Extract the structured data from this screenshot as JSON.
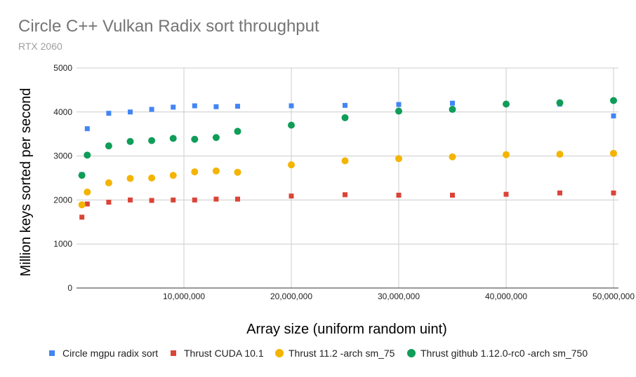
{
  "chart_data": {
    "type": "scatter",
    "title": "Circle C++ Vulkan Radix sort throughput",
    "subtitle": "RTX 2060",
    "xlabel": "Array size (uniform random uint)",
    "ylabel": "Million keys sorted per second",
    "xlim": [
      0,
      50000000
    ],
    "ylim": [
      0,
      5000
    ],
    "x_ticks": [
      {
        "value": 10000000,
        "label": "10,000,000"
      },
      {
        "value": 20000000,
        "label": "20,000,000"
      },
      {
        "value": 30000000,
        "label": "30,000,000"
      },
      {
        "value": 40000000,
        "label": "40,000,000"
      },
      {
        "value": 50000000,
        "label": "50,000,000"
      }
    ],
    "y_ticks": [
      {
        "value": 0,
        "label": "0"
      },
      {
        "value": 1000,
        "label": "1000"
      },
      {
        "value": 2000,
        "label": "2000"
      },
      {
        "value": 3000,
        "label": "3000"
      },
      {
        "value": 4000,
        "label": "4000"
      },
      {
        "value": 5000,
        "label": "5000"
      }
    ],
    "grid": true,
    "legend_position": "bottom",
    "x": [
      500000,
      1000000,
      3000000,
      5000000,
      7000000,
      9000000,
      11000000,
      13000000,
      15000000,
      20000000,
      25000000,
      30000000,
      35000000,
      40000000,
      45000000,
      50000000
    ],
    "series": [
      {
        "name": "Circle mgpu radix sort",
        "color": "#4285f4",
        "marker": "square",
        "values": [
          2580,
          3620,
          3970,
          4000,
          4060,
          4110,
          4140,
          4120,
          4130,
          4140,
          4150,
          4170,
          4200,
          4180,
          4180,
          3910
        ]
      },
      {
        "name": "Thrust CUDA 10.1",
        "color": "#db4437",
        "marker": "square",
        "values": [
          1610,
          1910,
          1950,
          2000,
          1990,
          2000,
          2000,
          2020,
          2020,
          2090,
          2120,
          2110,
          2110,
          2130,
          2160,
          2160
        ]
      },
      {
        "name": "Thrust 11.2 -arch sm_75",
        "color": "#f4b400",
        "marker": "circle",
        "values": [
          1890,
          2180,
          2390,
          2490,
          2500,
          2560,
          2640,
          2660,
          2630,
          2800,
          2890,
          2940,
          2980,
          3030,
          3040,
          3060
        ]
      },
      {
        "name": "Thrust github 1.12.0-rc0 -arch sm_750",
        "color": "#0f9d58",
        "marker": "circle",
        "values": [
          2560,
          3020,
          3230,
          3330,
          3350,
          3400,
          3380,
          3420,
          3560,
          3700,
          3870,
          4020,
          4060,
          4180,
          4210,
          4260
        ]
      }
    ]
  }
}
